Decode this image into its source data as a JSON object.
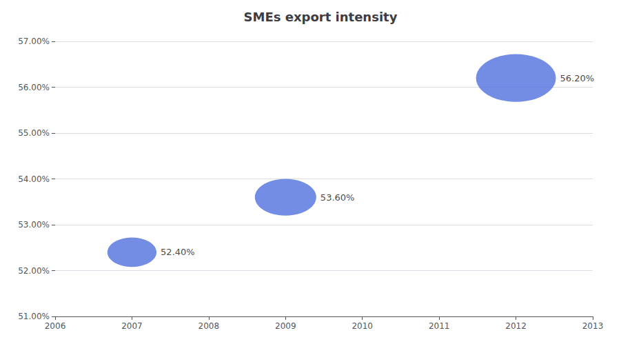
{
  "chart_data": {
    "type": "bubble",
    "title": "SMEs export intensity",
    "x": [
      2007,
      2009,
      2012
    ],
    "values": [
      52.4,
      53.6,
      56.2
    ],
    "value_labels": [
      "52.40%",
      "53.60%",
      "56.20%"
    ],
    "data_labels": true,
    "radii": [
      0.32,
      0.4,
      0.52
    ],
    "xlim": [
      2006,
      2013
    ],
    "xticks": [
      2006,
      2007,
      2008,
      2009,
      2010,
      2011,
      2012,
      2013
    ],
    "ylim": [
      51.0,
      57.0
    ],
    "yticks": [
      {
        "value": 51.0,
        "label": "51.00%"
      },
      {
        "value": 52.0,
        "label": "52.00%"
      },
      {
        "value": 53.0,
        "label": "53.00%"
      },
      {
        "value": 54.0,
        "label": "54.00%"
      },
      {
        "value": 55.0,
        "label": "55.00%"
      },
      {
        "value": 56.0,
        "label": "56.00%"
      },
      {
        "value": 57.0,
        "label": "57.00%"
      }
    ],
    "grid": true
  }
}
